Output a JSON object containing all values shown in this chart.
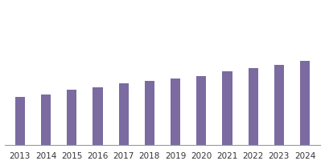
{
  "categories": [
    "2013",
    "2014",
    "2015",
    "2016",
    "2017",
    "2018",
    "2019",
    "2020",
    "2021",
    "2022",
    "2023",
    "2024"
  ],
  "values": [
    55,
    58,
    63,
    66,
    70,
    73,
    76,
    79,
    84,
    88,
    91,
    96
  ],
  "bar_color": "#7B6BA0",
  "background_color": "#ffffff",
  "ylim": [
    0,
    160
  ],
  "xlabel": "",
  "ylabel": "",
  "title": "",
  "bar_width": 0.38,
  "x_tick_fontsize": 7.5,
  "spine_color": "#999999"
}
